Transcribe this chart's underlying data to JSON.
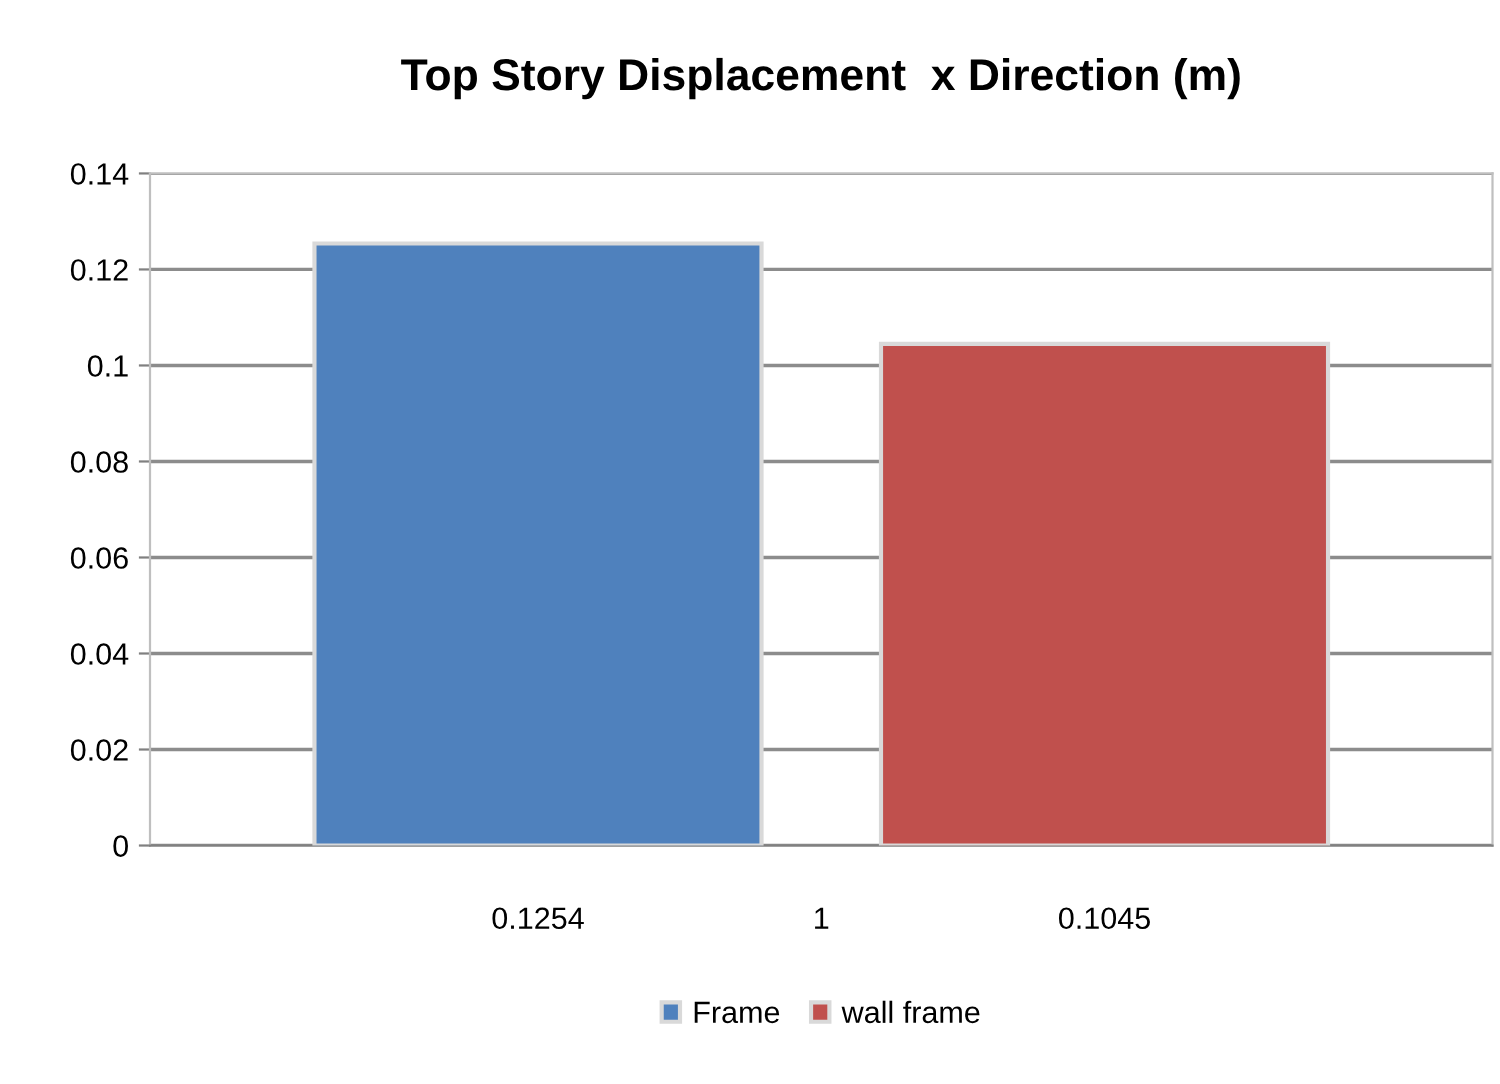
{
  "chart_data": {
    "type": "bar",
    "title": "Top Story Displacement  x Direction (m)",
    "categories": [
      "1"
    ],
    "series": [
      {
        "name": "Frame",
        "color": "#4f81bd",
        "values": [
          0.1254
        ],
        "value_labels": [
          "0.1254"
        ]
      },
      {
        "name": "wall frame",
        "color": "#c0504d",
        "values": [
          0.1045
        ],
        "value_labels": [
          "0.1045"
        ]
      }
    ],
    "ylim": [
      0,
      0.14
    ],
    "yticks": [
      0,
      0.02,
      0.04,
      0.06,
      0.08,
      0.1,
      0.12,
      0.14
    ],
    "grid": "y",
    "legend": "bottom"
  }
}
